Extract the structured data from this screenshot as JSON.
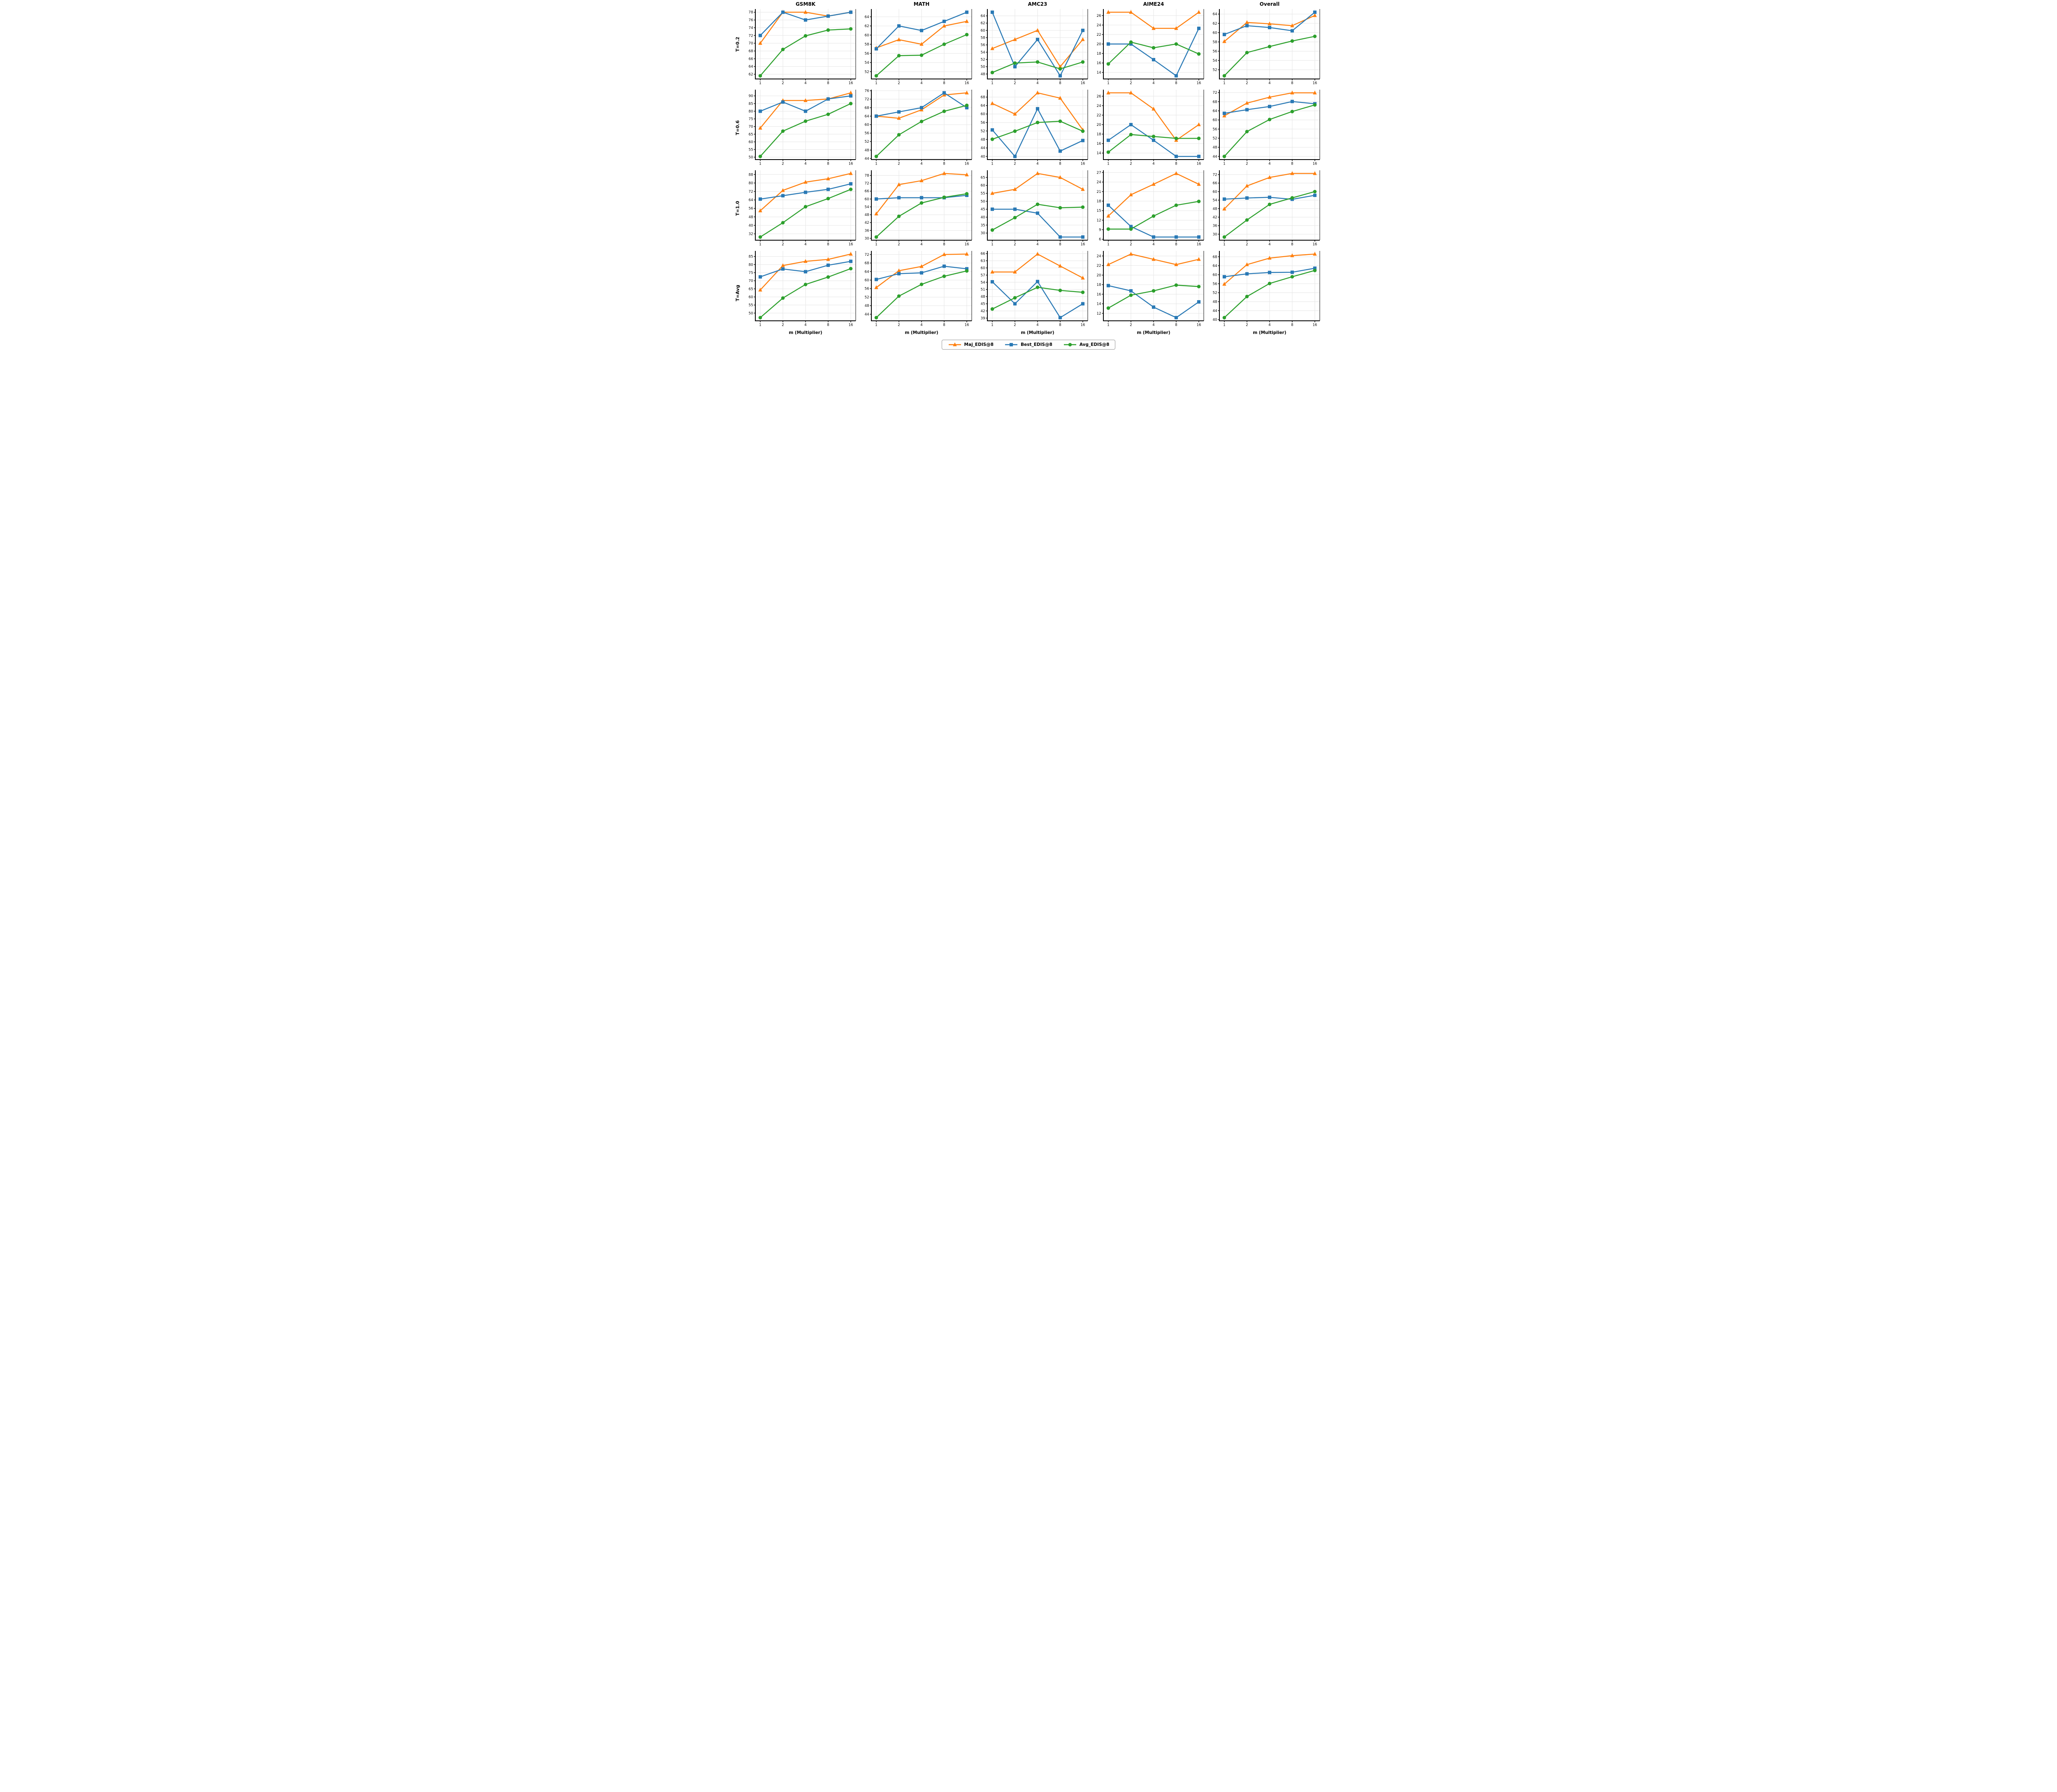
{
  "layout": {
    "row_labels": [
      "T=0.2",
      "T=0.6",
      "T=1.0",
      "T=Avg"
    ],
    "col_titles": [
      "GSM8K",
      "MATH",
      "AMC23",
      "AIME24",
      "Overall"
    ],
    "xlabel": "m (Multiplier)",
    "x_ticks": [
      1,
      2,
      4,
      8,
      16
    ],
    "grid_color": "#e5e5e5",
    "axis_color": "#000000"
  },
  "legend": [
    {
      "name": "Maj_EDIS@8",
      "key": "maj",
      "color": "#FF7F0E",
      "marker": "triangle"
    },
    {
      "name": "Best_EDIS@8",
      "key": "best",
      "color": "#2979B5",
      "marker": "square"
    },
    {
      "name": "Avg_EDIS@8",
      "key": "avg",
      "color": "#2CA02C",
      "marker": "circle"
    }
  ],
  "chart_data": [
    {
      "type": "line",
      "row": 0,
      "col": 0,
      "benchmark": "GSM8K",
      "temperature": "T=0.2",
      "x": [
        1,
        2,
        4,
        8,
        16
      ],
      "yticks": [
        62,
        64,
        66,
        68,
        70,
        72,
        74,
        76,
        78
      ],
      "maj": [
        70,
        78,
        78,
        77,
        78
      ],
      "best": [
        72,
        78,
        76,
        77,
        78
      ],
      "avg": [
        61.6,
        68.4,
        71.9,
        73.4,
        73.7
      ]
    },
    {
      "type": "line",
      "row": 0,
      "col": 1,
      "benchmark": "MATH",
      "temperature": "T=0.2",
      "x": [
        1,
        2,
        4,
        8,
        16
      ],
      "yticks": [
        52,
        54,
        56,
        58,
        60,
        62,
        64
      ],
      "maj": [
        57.2,
        59,
        58,
        62,
        63
      ],
      "best": [
        57,
        62,
        61,
        63,
        65
      ],
      "avg": [
        51.1,
        55.5,
        55.6,
        58,
        60.1
      ]
    },
    {
      "type": "line",
      "row": 0,
      "col": 2,
      "benchmark": "AMC23",
      "temperature": "T=0.2",
      "x": [
        1,
        2,
        4,
        8,
        16
      ],
      "yticks": [
        48,
        50,
        52,
        54,
        56,
        58,
        60,
        62,
        64
      ],
      "maj": [
        55,
        57.5,
        60,
        50,
        57.5
      ],
      "best": [
        65,
        50,
        57.5,
        47.5,
        60
      ],
      "avg": [
        48.4,
        51,
        51.3,
        49.4,
        51.3
      ]
    },
    {
      "type": "line",
      "row": 0,
      "col": 3,
      "benchmark": "AIME24",
      "temperature": "T=0.2",
      "x": [
        1,
        2,
        4,
        8,
        16
      ],
      "yticks": [
        14,
        16,
        18,
        20,
        22,
        24,
        26
      ],
      "maj": [
        26.7,
        26.7,
        23.3,
        23.3,
        26.7
      ],
      "best": [
        20,
        20,
        16.7,
        13.3,
        23.3
      ],
      "avg": [
        15.8,
        20.4,
        19.2,
        20,
        17.9
      ]
    },
    {
      "type": "line",
      "row": 0,
      "col": 4,
      "benchmark": "Overall",
      "temperature": "T=0.2",
      "x": [
        1,
        2,
        4,
        8,
        16
      ],
      "yticks": [
        52,
        54,
        56,
        58,
        60,
        62,
        64
      ],
      "maj": [
        58.1,
        62.2,
        61.9,
        61.5,
        63.7
      ],
      "best": [
        59.6,
        61.5,
        61.1,
        60.4,
        64.4
      ],
      "avg": [
        50.7,
        55.7,
        57,
        58.2,
        59.2
      ]
    },
    {
      "type": "line",
      "row": 1,
      "col": 0,
      "benchmark": "GSM8K",
      "temperature": "T=0.6",
      "x": [
        1,
        2,
        4,
        8,
        16
      ],
      "yticks": [
        50,
        55,
        60,
        65,
        70,
        75,
        80,
        85,
        90
      ],
      "maj": [
        69,
        87,
        87,
        88,
        92
      ],
      "best": [
        80,
        86,
        80,
        88,
        90
      ],
      "avg": [
        50.5,
        67,
        73.5,
        78,
        85
      ]
    },
    {
      "type": "line",
      "row": 1,
      "col": 1,
      "benchmark": "MATH",
      "temperature": "T=0.6",
      "x": [
        1,
        2,
        4,
        8,
        16
      ],
      "yticks": [
        44,
        48,
        52,
        56,
        60,
        64,
        68,
        72,
        76
      ],
      "maj": [
        64,
        63,
        67,
        74,
        75
      ],
      "best": [
        64,
        66,
        68,
        75,
        68
      ],
      "avg": [
        45,
        55.2,
        61.5,
        66.3,
        69.1
      ]
    },
    {
      "type": "line",
      "row": 1,
      "col": 2,
      "benchmark": "AMC23",
      "temperature": "T=0.6",
      "x": [
        1,
        2,
        4,
        8,
        16
      ],
      "yticks": [
        40,
        44,
        48,
        52,
        56,
        60,
        64,
        68
      ],
      "maj": [
        65,
        60,
        70,
        67.5,
        52.5
      ],
      "best": [
        52.5,
        40,
        62.5,
        42.5,
        47.5
      ],
      "avg": [
        48.1,
        51.9,
        56,
        56.6,
        51.9
      ]
    },
    {
      "type": "line",
      "row": 1,
      "col": 3,
      "benchmark": "AIME24",
      "temperature": "T=0.6",
      "x": [
        1,
        2,
        4,
        8,
        16
      ],
      "yticks": [
        14,
        16,
        18,
        20,
        22,
        24,
        26
      ],
      "maj": [
        26.7,
        26.7,
        23.3,
        16.7,
        20
      ],
      "best": [
        16.7,
        20,
        16.7,
        13.3,
        13.3
      ],
      "avg": [
        14.2,
        17.9,
        17.5,
        17.1,
        17.1
      ]
    },
    {
      "type": "line",
      "row": 1,
      "col": 4,
      "benchmark": "Overall",
      "temperature": "T=0.6",
      "x": [
        1,
        2,
        4,
        8,
        16
      ],
      "yticks": [
        44,
        48,
        52,
        56,
        60,
        64,
        68,
        72
      ],
      "maj": [
        61.8,
        67.4,
        70,
        71.9,
        71.9
      ],
      "best": [
        62.9,
        64.5,
        65.9,
        68.1,
        67.1
      ],
      "avg": [
        44,
        54.9,
        60.2,
        63.7,
        66.6
      ]
    },
    {
      "type": "line",
      "row": 2,
      "col": 0,
      "benchmark": "GSM8K",
      "temperature": "T=1.0",
      "x": [
        1,
        2,
        4,
        8,
        16
      ],
      "yticks": [
        32,
        40,
        48,
        56,
        64,
        72,
        80,
        88
      ],
      "maj": [
        53.8,
        73,
        80.8,
        84,
        89
      ],
      "best": [
        64.8,
        68,
        71.2,
        74,
        79.2
      ],
      "avg": [
        29,
        42.5,
        57.6,
        65.3,
        74
      ]
    },
    {
      "type": "line",
      "row": 2,
      "col": 1,
      "benchmark": "MATH",
      "temperature": "T=1.0",
      "x": [
        1,
        2,
        4,
        8,
        16
      ],
      "yticks": [
        30,
        36,
        42,
        48,
        54,
        60,
        66,
        72,
        78
      ],
      "maj": [
        48.7,
        71,
        74,
        79.5,
        78.5
      ],
      "best": [
        60,
        61,
        61,
        61,
        62.8
      ],
      "avg": [
        31,
        46.8,
        57,
        61.3,
        64
      ]
    },
    {
      "type": "line",
      "row": 2,
      "col": 2,
      "benchmark": "AMC23",
      "temperature": "T=1.0",
      "x": [
        1,
        2,
        4,
        8,
        16
      ],
      "yticks": [
        30,
        35,
        40,
        45,
        50,
        55,
        60,
        65
      ],
      "maj": [
        55,
        57.5,
        67.5,
        65,
        57.5
      ],
      "best": [
        45,
        45,
        42.5,
        27.5,
        27.5
      ],
      "avg": [
        31.9,
        39.7,
        48.1,
        45.9,
        46.3
      ]
    },
    {
      "type": "line",
      "row": 2,
      "col": 3,
      "benchmark": "AIME24",
      "temperature": "T=1.0",
      "x": [
        1,
        2,
        4,
        8,
        16
      ],
      "yticks": [
        6,
        9,
        12,
        15,
        18,
        21,
        24,
        27
      ],
      "maj": [
        13.3,
        20,
        23.3,
        26.7,
        23.3
      ],
      "best": [
        16.7,
        10,
        6.7,
        6.7,
        6.7
      ],
      "avg": [
        9.2,
        9.2,
        13.3,
        16.7,
        17.9
      ]
    },
    {
      "type": "line",
      "row": 2,
      "col": 4,
      "benchmark": "Overall",
      "temperature": "T=1.0",
      "x": [
        1,
        2,
        4,
        8,
        16
      ],
      "yticks": [
        30,
        36,
        42,
        48,
        54,
        60,
        66,
        72
      ],
      "maj": [
        47.8,
        64,
        70,
        72.8,
        72.8
      ],
      "best": [
        54.7,
        55.5,
        56,
        54.6,
        57.4
      ],
      "avg": [
        28,
        40,
        51,
        55.6,
        60
      ]
    },
    {
      "type": "line",
      "row": 3,
      "col": 0,
      "benchmark": "GSM8K",
      "temperature": "T=Avg",
      "x": [
        1,
        2,
        4,
        8,
        16
      ],
      "yticks": [
        50,
        55,
        60,
        65,
        70,
        75,
        80,
        85
      ],
      "maj": [
        64.3,
        79.4,
        82,
        83.2,
        86.5
      ],
      "best": [
        72.4,
        77.3,
        75.6,
        79.6,
        82
      ],
      "avg": [
        47.2,
        59.3,
        67.7,
        72.3,
        77.5
      ]
    },
    {
      "type": "line",
      "row": 3,
      "col": 1,
      "benchmark": "MATH",
      "temperature": "T=Avg",
      "x": [
        1,
        2,
        4,
        8,
        16
      ],
      "yticks": [
        44,
        48,
        52,
        56,
        60,
        64,
        68,
        72
      ],
      "maj": [
        56.5,
        64.4,
        66.4,
        72,
        72.2
      ],
      "best": [
        60.3,
        63,
        63.4,
        66.5,
        65.3
      ],
      "avg": [
        42.4,
        52.5,
        58,
        61.8,
        64.3
      ]
    },
    {
      "type": "line",
      "row": 3,
      "col": 2,
      "benchmark": "AMC23",
      "temperature": "T=Avg",
      "x": [
        1,
        2,
        4,
        8,
        16
      ],
      "yticks": [
        39,
        42,
        45,
        48,
        51,
        54,
        57,
        60,
        63,
        66
      ],
      "maj": [
        58.3,
        58.3,
        65.8,
        60.8,
        55.8
      ],
      "best": [
        54.2,
        45,
        54.3,
        39.2,
        45
      ],
      "avg": [
        42.8,
        47.5,
        51.9,
        50.6,
        49.8
      ]
    },
    {
      "type": "line",
      "row": 3,
      "col": 3,
      "benchmark": "AIME24",
      "temperature": "T=Avg",
      "x": [
        1,
        2,
        4,
        8,
        16
      ],
      "yticks": [
        12,
        14,
        16,
        18,
        20,
        22,
        24
      ],
      "maj": [
        22.2,
        24.4,
        23.3,
        22.2,
        23.3
      ],
      "best": [
        17.8,
        16.7,
        13.3,
        11.1,
        14.4
      ],
      "avg": [
        13.1,
        15.8,
        16.7,
        17.9,
        17.6
      ]
    },
    {
      "type": "line",
      "row": 3,
      "col": 4,
      "benchmark": "Overall",
      "temperature": "T=Avg",
      "x": [
        1,
        2,
        4,
        8,
        16
      ],
      "yticks": [
        40,
        44,
        48,
        52,
        56,
        60,
        64,
        68
      ],
      "maj": [
        55.8,
        64.5,
        67.4,
        68.5,
        69.2
      ],
      "best": [
        59.1,
        60.4,
        61,
        61.1,
        62.9
      ],
      "avg": [
        40.9,
        50.3,
        56.1,
        59.1,
        61.9
      ]
    }
  ]
}
